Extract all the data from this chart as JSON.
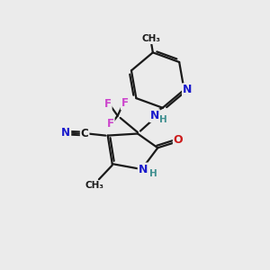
{
  "bg_color": "#ebebeb",
  "bond_color": "#1a1a1a",
  "bond_width": 1.6,
  "atom_colors": {
    "C": "#1a1a1a",
    "N": "#1a1acc",
    "O": "#cc1a1a",
    "F": "#cc44cc",
    "H": "#409090"
  }
}
